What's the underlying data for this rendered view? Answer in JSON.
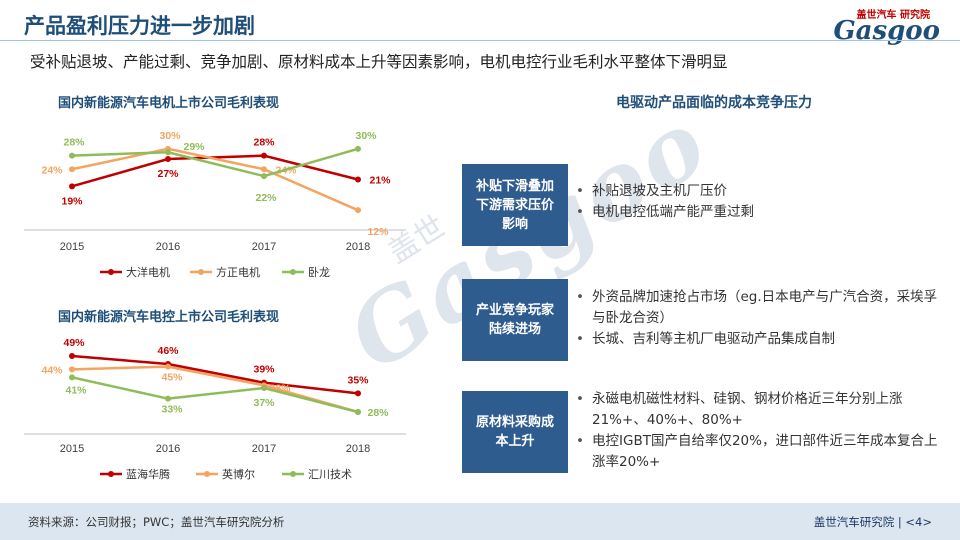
{
  "header": {
    "title": "产品盈利压力进一步加剧",
    "logo_cn": "盖世汽车 研究院",
    "logo_en": "Gasgoo"
  },
  "subtitle": "受补贴退坡、产能过剩、竞争加剧、原材料成本上升等因素影响，电机电控行业毛利水平整体下滑明显",
  "watermark": {
    "en": "Gasgoo",
    "cn": "盖世"
  },
  "chart_data": [
    {
      "type": "line",
      "title": "国内新能源汽车电机上市公司毛利表现",
      "categories": [
        "2015",
        "2016",
        "2017",
        "2018"
      ],
      "series": [
        {
          "name": "大洋电机",
          "color": "#c00000",
          "values": [
            19,
            27,
            28,
            21
          ],
          "labels": [
            "19%",
            "27%",
            "28%",
            "21%"
          ]
        },
        {
          "name": "方正电机",
          "color": "#f4a460",
          "values": [
            24,
            30,
            24,
            12
          ],
          "labels": [
            "24%",
            "30%",
            "24%",
            "12%"
          ]
        },
        {
          "name": "卧龙",
          "color": "#8fbc5a",
          "values": [
            28,
            29,
            22,
            30
          ],
          "labels": [
            "28%",
            "29%",
            "22%",
            "30%"
          ]
        }
      ],
      "ylim": [
        10,
        32
      ]
    },
    {
      "type": "line",
      "title": "国内新能源汽车电控上市公司毛利表现",
      "categories": [
        "2015",
        "2016",
        "2017",
        "2018"
      ],
      "series": [
        {
          "name": "蓝海华腾",
          "color": "#c00000",
          "values": [
            49,
            46,
            39,
            35
          ],
          "labels": [
            "49%",
            "46%",
            "39%",
            "35%"
          ]
        },
        {
          "name": "英博尔",
          "color": "#f4a460",
          "values": [
            44,
            45,
            38,
            28
          ],
          "labels": [
            "44%",
            "45%",
            "38%",
            ""
          ]
        },
        {
          "name": "汇川技术",
          "color": "#8fbc5a",
          "values": [
            41,
            33,
            37,
            28
          ],
          "labels": [
            "41%",
            "33%",
            "37%",
            "28%"
          ]
        }
      ],
      "ylim": [
        25,
        52
      ]
    }
  ],
  "pressure": {
    "title": "电驱动产品面临的成本竞争压力",
    "items": [
      {
        "label": "补贴下滑叠加下游需求压价影响",
        "bullets": [
          "补贴退坡及主机厂压价",
          "电机电控低端产能严重过剩"
        ]
      },
      {
        "label": "产业竞争玩家陆续进场",
        "bullets": [
          "外资品牌加速抢占市场（eg.日本电产与广汽合资，采埃孚与卧龙合资）",
          "长城、吉利等主机厂电驱动产品集成自制"
        ]
      },
      {
        "label": "原材料采购成本上升",
        "bullets": [
          "永磁电机磁性材料、硅钢、钢材价格近三年分别上涨21%+、40%+、80%+",
          "电控IGBT国产自给率仅20%，进口部件近三年成本复合上涨率20%+"
        ]
      }
    ]
  },
  "footer": {
    "source": "资料来源：公司财报；PWC；盖世汽车研究院分析",
    "org": "盖世汽车研究院 | <4>"
  }
}
